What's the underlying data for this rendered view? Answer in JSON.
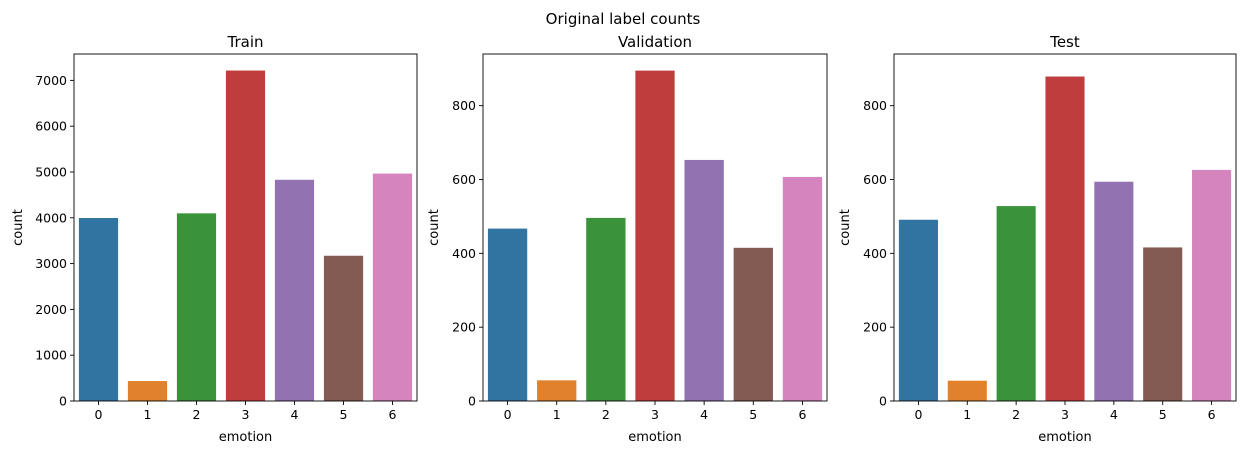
{
  "figure": {
    "title": "Original label counts"
  },
  "palette": [
    "#3274a1",
    "#e1812c",
    "#3a923a",
    "#c03d3e",
    "#9372b2",
    "#845b53",
    "#d684bd"
  ],
  "chart_data": [
    {
      "type": "bar",
      "title": "Train",
      "xlabel": "emotion",
      "ylabel": "count",
      "categories": [
        "0",
        "1",
        "2",
        "3",
        "4",
        "5",
        "6"
      ],
      "values": [
        3995,
        436,
        4097,
        7215,
        4830,
        3171,
        4965
      ],
      "ylim": [
        0,
        7576
      ],
      "yticks": [
        0,
        1000,
        2000,
        3000,
        4000,
        5000,
        6000,
        7000
      ]
    },
    {
      "type": "bar",
      "title": "Validation",
      "xlabel": "emotion",
      "ylabel": "count",
      "categories": [
        "0",
        "1",
        "2",
        "3",
        "4",
        "5",
        "6"
      ],
      "values": [
        467,
        56,
        496,
        895,
        653,
        415,
        607
      ],
      "ylim": [
        0,
        940
      ],
      "yticks": [
        0,
        200,
        400,
        600,
        800
      ]
    },
    {
      "type": "bar",
      "title": "Test",
      "xlabel": "emotion",
      "ylabel": "count",
      "categories": [
        "0",
        "1",
        "2",
        "3",
        "4",
        "5",
        "6"
      ],
      "values": [
        491,
        55,
        528,
        879,
        594,
        416,
        626
      ],
      "ylim": [
        0,
        940
      ],
      "yticks": [
        0,
        200,
        400,
        600,
        800
      ]
    }
  ]
}
